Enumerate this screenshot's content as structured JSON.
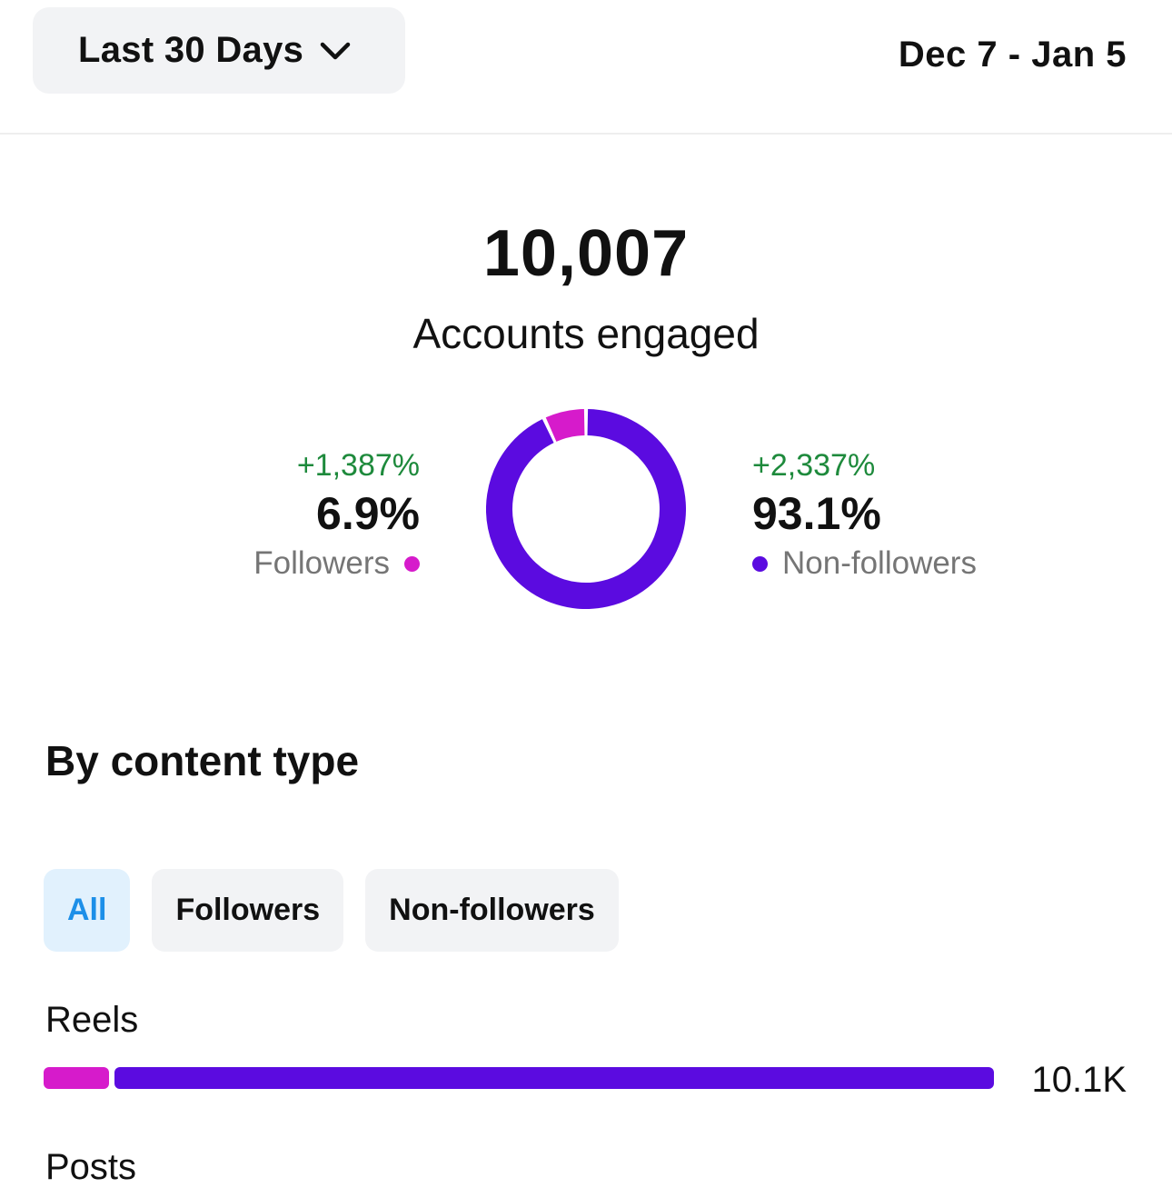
{
  "header": {
    "period_label": "Last 30 Days",
    "date_range": "Dec 7 - Jan 5"
  },
  "summary": {
    "total": "10,007",
    "label": "Accounts engaged"
  },
  "breakdown": {
    "followers": {
      "change": "+1,387%",
      "percent": "6.9%",
      "label": "Followers",
      "color": "#d61bcb",
      "fraction": 0.069
    },
    "non_followers": {
      "change": "+2,337%",
      "percent": "93.1%",
      "label": "Non-followers",
      "color": "#5b0be0",
      "fraction": 0.931
    }
  },
  "content_type": {
    "title": "By content type",
    "filters": [
      "All",
      "Followers",
      "Non-followers"
    ],
    "active_filter": "All",
    "rows": [
      {
        "label": "Reels",
        "value": "10.1K",
        "followers_fraction": 0.069,
        "non_followers_fraction": 0.931,
        "scale_fraction": 1.0
      },
      {
        "label": "Posts"
      }
    ]
  }
}
